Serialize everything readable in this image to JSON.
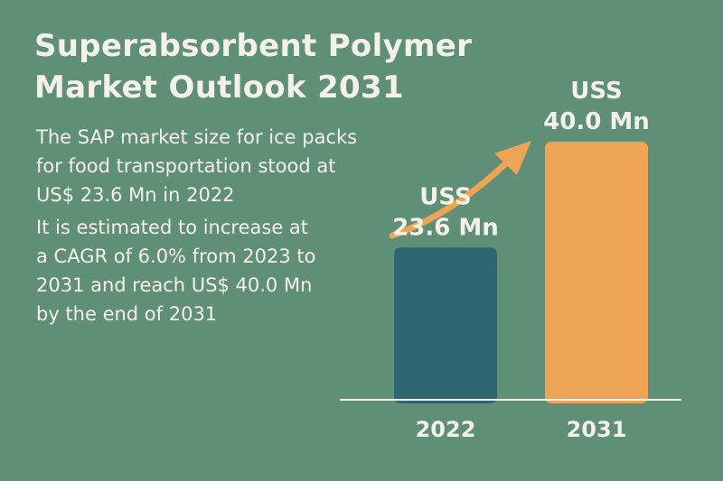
{
  "title_lines": [
    "Superabsorbent Polymer",
    "Market Outlook 2031"
  ],
  "paragraph1_lines": [
    "The SAP market size for ice packs",
    "for food transportation stood at",
    "US$ 23.6 Mn in 2022"
  ],
  "paragraph2_lines": [
    "It is estimated to increase at",
    "a CAGR of 6.0% from 2023 to",
    "2031 and reach US$ 40.0 Mn",
    "by the end of 2031"
  ],
  "colors": {
    "background": "#5f9077",
    "text": "#f4f1e8",
    "bar_2022": "#2d6570",
    "bar_2031": "#eda454",
    "arrow": "#eda454",
    "baseline": "#f4f1e8"
  },
  "chart_data": {
    "type": "bar",
    "categories": [
      "2022",
      "2031"
    ],
    "values": [
      23.6,
      40.0
    ],
    "data_labels": [
      [
        "USS",
        "23.6 Mn"
      ],
      [
        "USS",
        "40.0 Mn"
      ]
    ],
    "unit": "US$ Mn",
    "ylim": [
      0,
      40.0
    ],
    "grid": false,
    "legend": "none",
    "annotation": "upward growth arrow from 2022 bar to 2031 bar"
  }
}
